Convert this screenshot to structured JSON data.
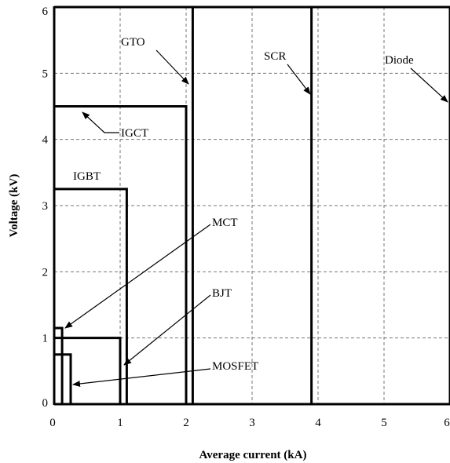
{
  "chart_data": {
    "type": "line",
    "xlabel": "Average current (kA)",
    "ylabel": "Voltage (kV)",
    "xlim": [
      0,
      6
    ],
    "ylim": [
      0,
      6
    ],
    "x_ticks": [
      "0",
      "1",
      "2",
      "3",
      "4",
      "5",
      "6"
    ],
    "y_ticks": [
      "0",
      "1",
      "2",
      "3",
      "4",
      "5",
      "6"
    ],
    "grid": true,
    "grid_style": "dashed",
    "devices": [
      {
        "name": "GTO",
        "current_kA": 2.1,
        "voltage_kV": 6.0
      },
      {
        "name": "SCR",
        "current_kA": 3.9,
        "voltage_kV": 6.0
      },
      {
        "name": "Diode",
        "current_kA": 6.0,
        "voltage_kV": 6.0
      },
      {
        "name": "IGCT",
        "current_kA": 2.0,
        "voltage_kV": 4.5
      },
      {
        "name": "IGBT",
        "current_kA": 1.1,
        "voltage_kV": 3.25
      },
      {
        "name": "MCT",
        "current_kA": 0.12,
        "voltage_kV": 1.15
      },
      {
        "name": "BJT",
        "current_kA": 1.0,
        "voltage_kV": 1.0
      },
      {
        "name": "MOSFET",
        "current_kA": 0.25,
        "voltage_kV": 0.75
      }
    ]
  },
  "colors": {
    "line": "#000000",
    "grid": "#777777",
    "background": "#ffffff"
  }
}
